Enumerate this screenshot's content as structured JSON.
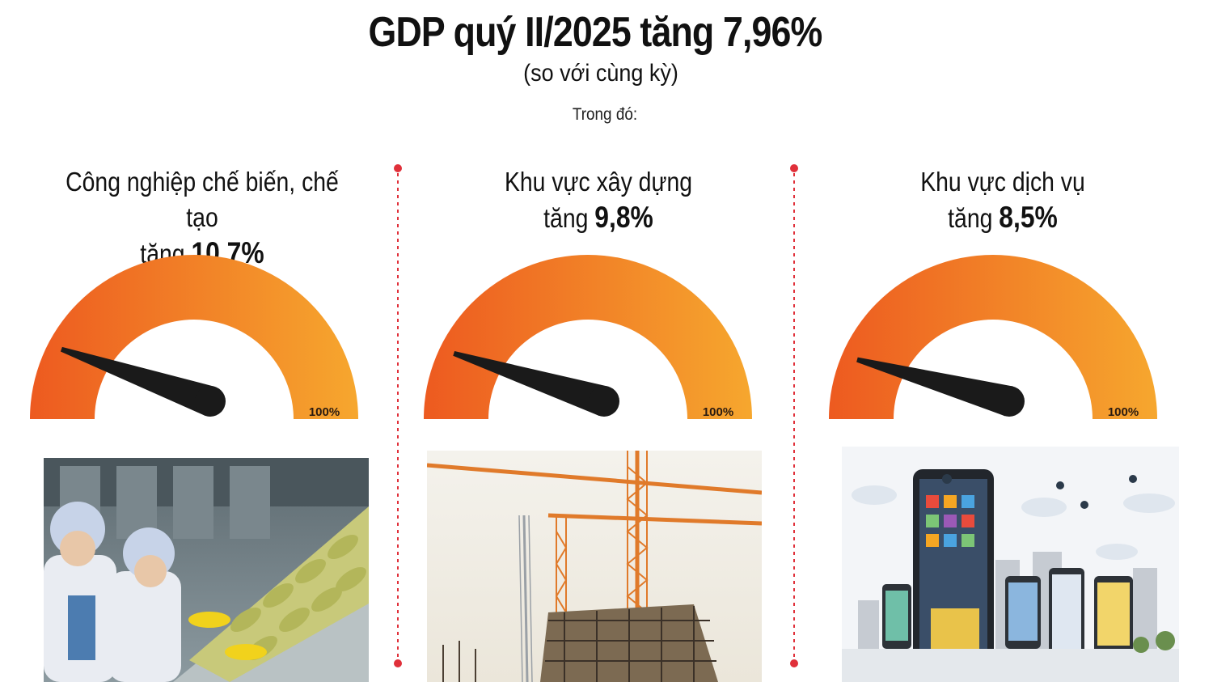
{
  "header": {
    "title": "GDP quý II/2025 tăng 7,96%",
    "subtitle": "(so với cùng kỳ)",
    "intro": "Trong đó:"
  },
  "colors": {
    "gauge_start": "#ED5A20",
    "gauge_end": "#F6A72E",
    "needle": "#1A1A1A",
    "divider": "#E0303A"
  },
  "chart_data": [
    {
      "type": "gauge",
      "sector": "Công nghiệp chế biến, chế tạo",
      "prefix": "tăng",
      "value": 10.7,
      "value_label": "10,7%",
      "max": 100,
      "max_label": "100%",
      "image": "food-processing-workers"
    },
    {
      "type": "gauge",
      "sector": "Khu vực xây dựng",
      "prefix": "tăng",
      "value": 9.8,
      "value_label": "9,8%",
      "max": 100,
      "max_label": "100%",
      "image": "construction-cranes"
    },
    {
      "type": "gauge",
      "sector": "Khu vực dịch vụ",
      "prefix": "tăng",
      "value": 8.5,
      "value_label": "8,5%",
      "max": 100,
      "max_label": "100%",
      "image": "digital-services-illustration"
    }
  ]
}
